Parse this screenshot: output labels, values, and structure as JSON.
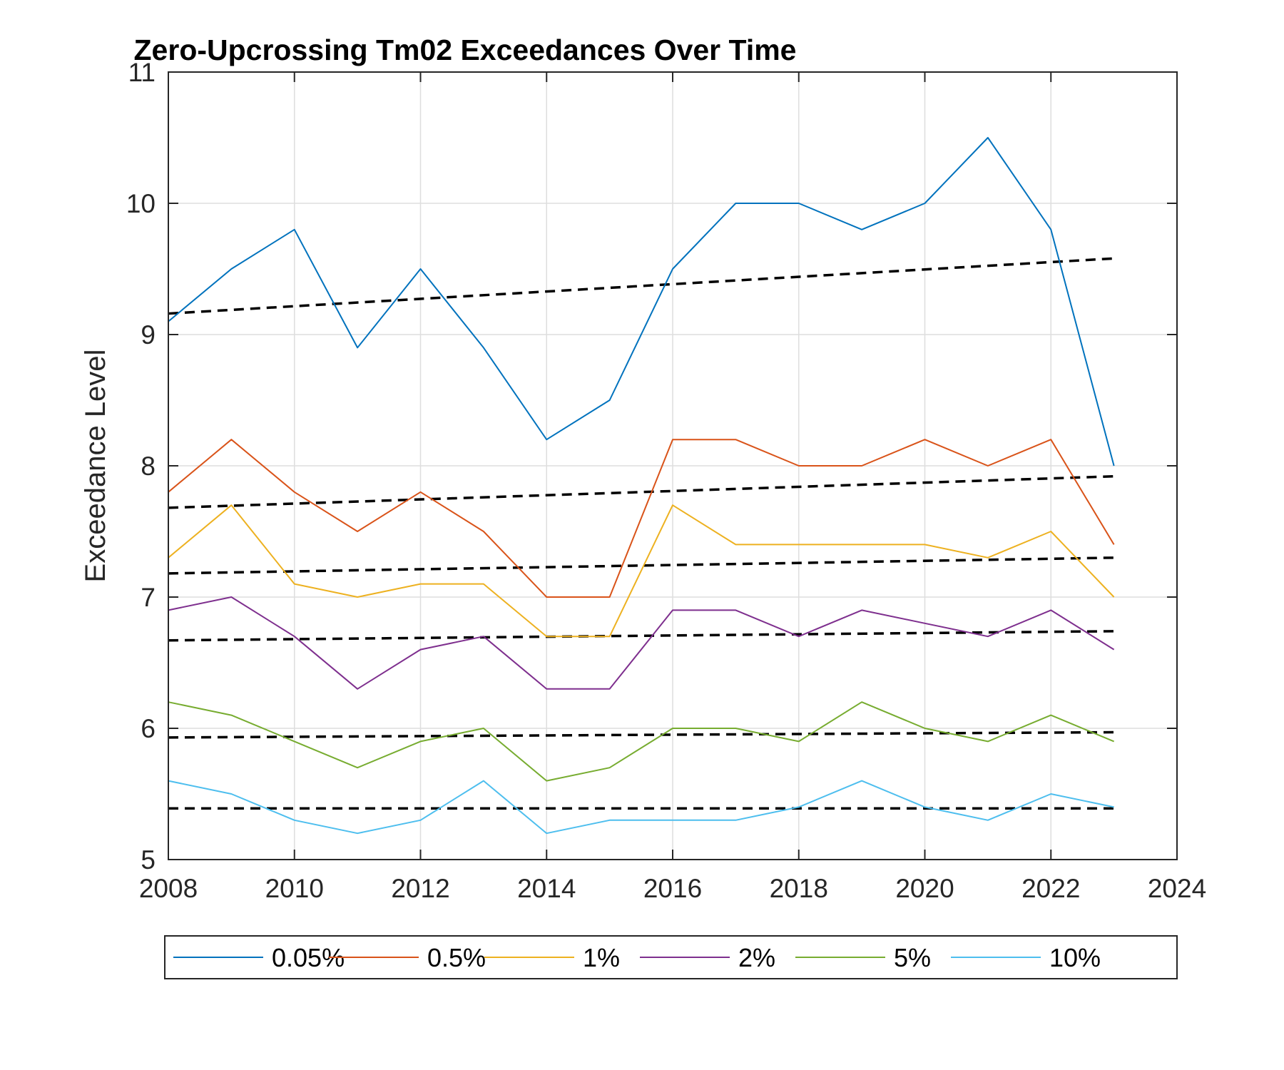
{
  "chart_data": {
    "type": "line",
    "title": "Zero-Upcrossing Tm02 Exceedances Over Time",
    "xlabel": "",
    "ylabel": "Exceedance Level",
    "xlim": [
      2008,
      2024
    ],
    "ylim": [
      5,
      11
    ],
    "xticks": [
      2008,
      2010,
      2012,
      2014,
      2016,
      2018,
      2020,
      2022,
      2024
    ],
    "yticks": [
      5,
      6,
      7,
      8,
      9,
      10,
      11
    ],
    "grid": true,
    "legend_position": "bottom",
    "x": [
      2008,
      2009,
      2010,
      2011,
      2012,
      2013,
      2014,
      2015,
      2016,
      2017,
      2018,
      2019,
      2020,
      2021,
      2022,
      2023
    ],
    "series": [
      {
        "name": "0.05%",
        "color": "#0072BD",
        "values": [
          9.1,
          9.5,
          9.8,
          8.9,
          9.5,
          8.9,
          8.2,
          8.5,
          9.5,
          10.0,
          10.0,
          9.8,
          10.0,
          10.5,
          9.8,
          8.0
        ],
        "trend": [
          9.16,
          9.58
        ]
      },
      {
        "name": "0.5%",
        "color": "#D95319",
        "values": [
          7.8,
          8.2,
          7.8,
          7.5,
          7.8,
          7.5,
          7.0,
          7.0,
          8.2,
          8.2,
          8.0,
          8.0,
          8.2,
          8.0,
          8.2,
          7.4
        ],
        "trend": [
          7.68,
          7.92
        ]
      },
      {
        "name": "1%",
        "color": "#EDB120",
        "values": [
          7.3,
          7.7,
          7.1,
          7.0,
          7.1,
          7.1,
          6.7,
          6.7,
          7.7,
          7.4,
          7.4,
          7.4,
          7.4,
          7.3,
          7.5,
          7.0
        ],
        "trend": [
          7.18,
          7.3
        ]
      },
      {
        "name": "2%",
        "color": "#7E2F8E",
        "values": [
          6.9,
          7.0,
          6.7,
          6.3,
          6.6,
          6.7,
          6.3,
          6.3,
          6.9,
          6.9,
          6.7,
          6.9,
          6.8,
          6.7,
          6.9,
          6.6
        ],
        "trend": [
          6.67,
          6.74
        ]
      },
      {
        "name": "5%",
        "color": "#77AC30",
        "values": [
          6.2,
          6.1,
          5.9,
          5.7,
          5.9,
          6.0,
          5.6,
          5.7,
          6.0,
          6.0,
          5.9,
          6.2,
          6.0,
          5.9,
          6.1,
          5.9
        ],
        "trend": [
          5.93,
          5.97
        ]
      },
      {
        "name": "10%",
        "color": "#4DBEEE",
        "values": [
          5.6,
          5.5,
          5.3,
          5.2,
          5.3,
          5.6,
          5.2,
          5.3,
          5.3,
          5.3,
          5.4,
          5.6,
          5.4,
          5.3,
          5.5,
          5.4
        ],
        "trend": [
          5.39,
          5.39
        ]
      }
    ]
  }
}
